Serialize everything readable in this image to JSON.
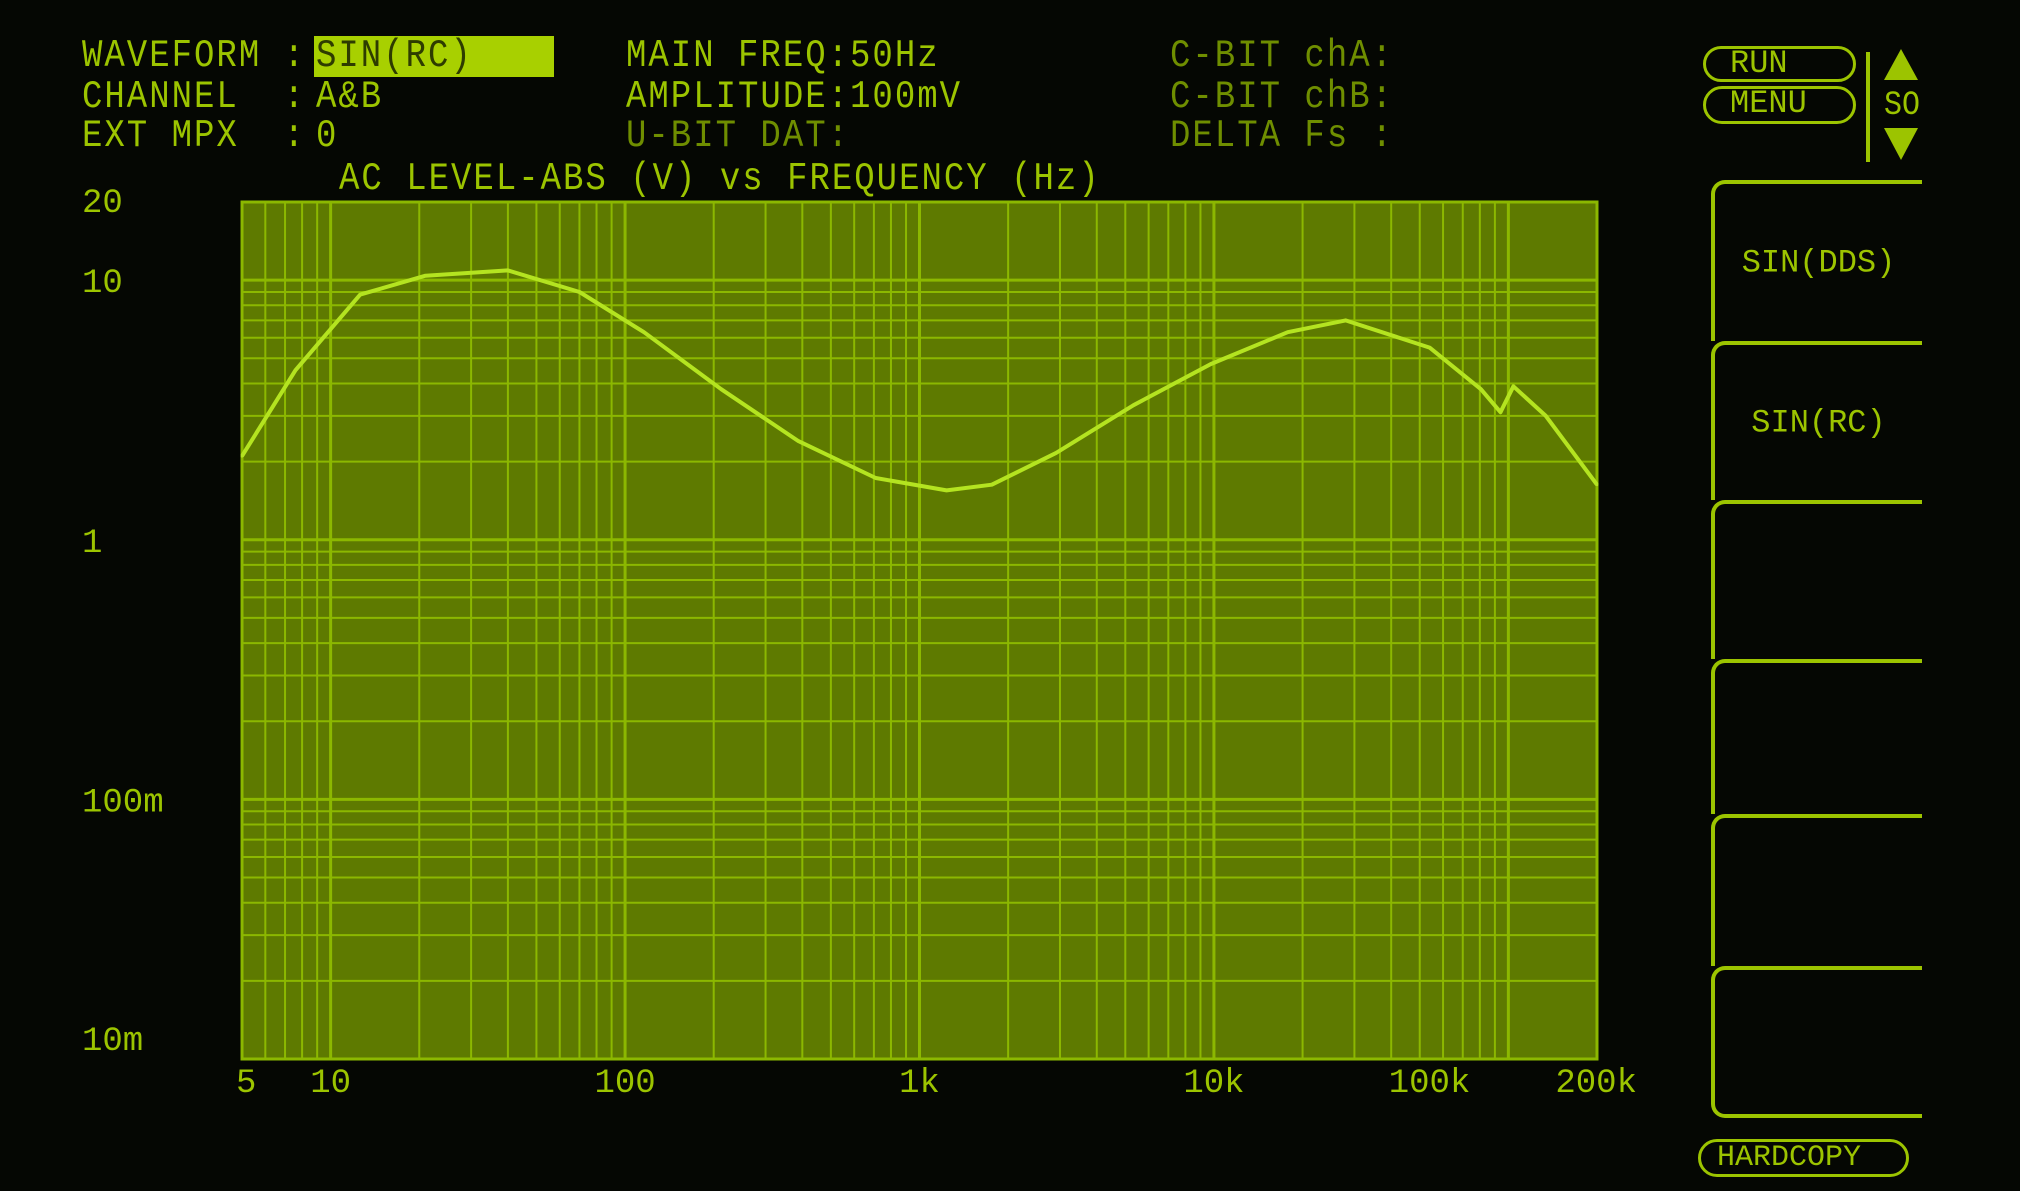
{
  "status": {
    "waveform_label": "WAVEFORM :",
    "waveform_value": "SIN(RC)",
    "channel_label": "CHANNEL  :",
    "channel_value": "A&B",
    "ext_mpx_label": "EXT MPX  :",
    "ext_mpx_value": "0",
    "main_freq": "MAIN FREQ:50Hz",
    "amplitude": "AMPLITUDE:100mV",
    "u_bit": "U-BIT DAT:",
    "c_bit_a": "C-BIT chA:",
    "c_bit_b": "C-BIT chB:",
    "delta_fs": "DELTA Fs :"
  },
  "controls": {
    "run": "RUN",
    "menu": "MENU",
    "so": "SO",
    "up_icon": "triangle-up-icon",
    "down_icon": "triangle-down-icon",
    "hardcopy": "HARDCOPY"
  },
  "softkeys": [
    "SIN(DDS)",
    "SIN(RC)",
    "",
    "",
    "",
    ""
  ],
  "colors": {
    "phosphor": "#9cc400",
    "plot_bg": "#5e7a00",
    "grid": "#8cb800",
    "trace": "#b4e420"
  },
  "chart_data": {
    "type": "line",
    "title": "AC LEVEL-ABS (V) vs FREQUENCY (Hz)",
    "xscale": "log",
    "yscale": "log",
    "xlim": [
      5,
      200000
    ],
    "ylim": [
      0.01,
      20
    ],
    "grid": true,
    "xticks": [
      {
        "v": 5,
        "label": "5"
      },
      {
        "v": 10,
        "label": "10"
      },
      {
        "v": 100,
        "label": "100"
      },
      {
        "v": 1000,
        "label": "1k"
      },
      {
        "v": 10000,
        "label": "10k"
      },
      {
        "v": 100000,
        "label": "100k"
      },
      {
        "v": 200000,
        "label": "200k"
      }
    ],
    "yticks": [
      {
        "v": 20,
        "label": "20"
      },
      {
        "v": 10,
        "label": "10"
      },
      {
        "v": 1,
        "label": "1"
      },
      {
        "v": 0.1,
        "label": "100m"
      },
      {
        "v": 0.01,
        "label": "10m"
      }
    ],
    "series": [
      {
        "x": [
          5,
          7.6,
          12.6,
          21,
          40,
          70,
          116,
          212,
          388,
          710,
          1236,
          1760,
          2910,
          5330,
          9750,
          17800,
          28000,
          54000,
          80700,
          94000,
          104000,
          134000,
          200000
        ],
        "y": [
          2.1,
          4.5,
          8.8,
          10.4,
          10.9,
          9.0,
          6.3,
          3.8,
          2.4,
          1.73,
          1.55,
          1.63,
          2.16,
          3.3,
          4.75,
          6.3,
          7.0,
          5.5,
          3.8,
          3.1,
          3.9,
          3.0,
          1.63
        ]
      }
    ]
  }
}
